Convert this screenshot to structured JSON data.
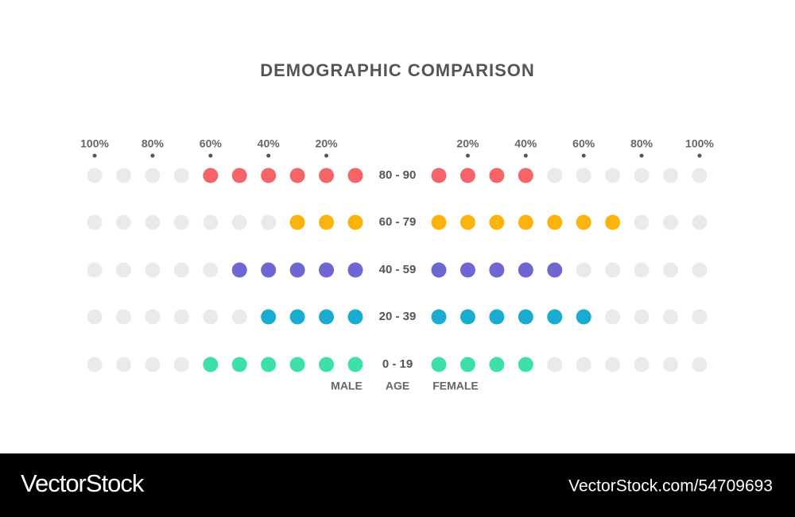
{
  "chart_data": {
    "type": "dot",
    "title": "DEMOGRAPHIC COMPARISON",
    "category_label": "AGE",
    "categories": [
      "80 - 90",
      "60 - 79",
      "40 - 59",
      "20 - 39",
      "0 - 19"
    ],
    "colors": [
      "#f56468",
      "#fbb40d",
      "#6e66d2",
      "#1aabd1",
      "#3ddfab"
    ],
    "series": [
      {
        "name": "MALE",
        "values": [
          60,
          30,
          50,
          40,
          60
        ]
      },
      {
        "name": "FEMALE",
        "values": [
          40,
          70,
          50,
          60,
          40
        ]
      }
    ],
    "xlim": [
      0,
      100
    ],
    "xticks": [
      {
        "value": 20,
        "label": "20%"
      },
      {
        "value": 40,
        "label": "40%"
      },
      {
        "value": 60,
        "label": "60%"
      },
      {
        "value": 80,
        "label": "80%"
      },
      {
        "value": 100,
        "label": "100%"
      }
    ]
  },
  "footer": {
    "brand": "VectorStock",
    "url": "VectorStock.com/54709693"
  }
}
